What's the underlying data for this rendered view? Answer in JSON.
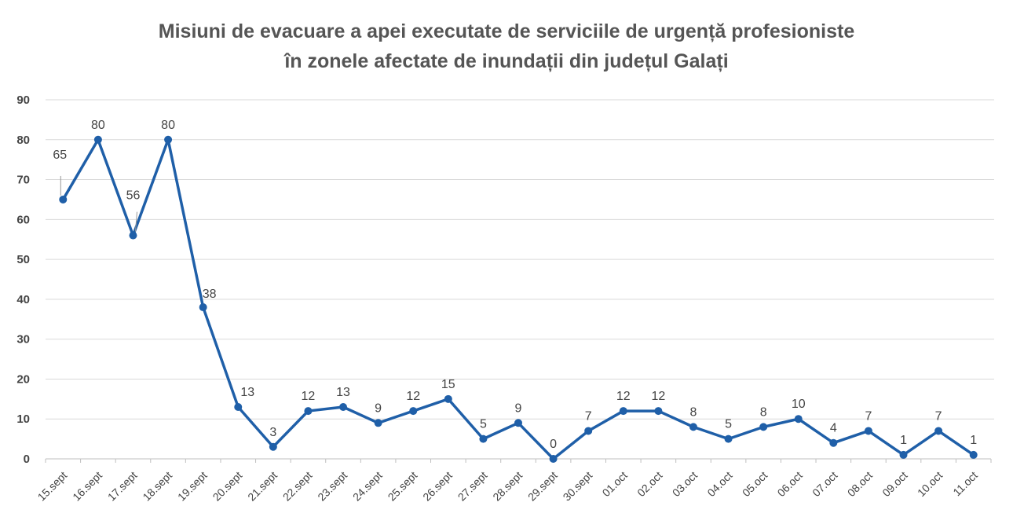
{
  "chart_data": {
    "type": "line",
    "title_line1": "Misiuni de evacuare a apei executate de serviciile de urgență profesioniste",
    "title_line2": "în zonele afectate de inundații din județul Galați",
    "xlabel": "",
    "ylabel": "",
    "ylim": [
      0,
      90
    ],
    "yticks": [
      0,
      10,
      20,
      30,
      40,
      50,
      60,
      70,
      80,
      90
    ],
    "grid": true,
    "legend": "none",
    "line_color": "#1f5fa8",
    "categories": [
      "15.sept",
      "16.sept",
      "17.sept",
      "18.sept",
      "19.sept",
      "20.sept",
      "21.sept",
      "22.sept",
      "23.sept",
      "24.sept",
      "25.sept",
      "26.sept",
      "27.sept",
      "28.sept",
      "29.sept",
      "30.sept",
      "01.oct",
      "02.oct",
      "03.oct",
      "04.oct",
      "05.oct",
      "06.oct",
      "07.oct",
      "08.oct",
      "09.oct",
      "10.oct",
      "11.oct"
    ],
    "series": [
      {
        "name": "Misiuni",
        "values": [
          65,
          80,
          56,
          80,
          38,
          13,
          3,
          12,
          13,
          9,
          12,
          15,
          5,
          9,
          0,
          7,
          12,
          12,
          8,
          5,
          8,
          10,
          4,
          7,
          1,
          7,
          1
        ]
      }
    ]
  }
}
